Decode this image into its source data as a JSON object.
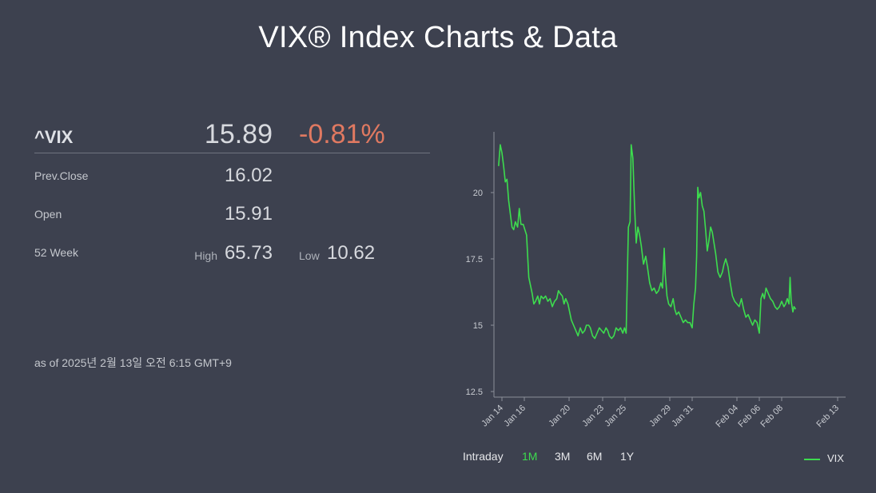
{
  "page": {
    "title": "VIX® Index Charts & Data"
  },
  "quote": {
    "symbol": "^VIX",
    "last": "15.89",
    "change_pct": "-0.81%",
    "prev_close_label": "Prev.Close",
    "prev_close": "16.02",
    "open_label": "Open",
    "open": "15.91",
    "week52_label": "52 Week",
    "high_label": "High",
    "high": "65.73",
    "low_label": "Low",
    "low": "10.62",
    "as_of": "as of 2025년 2월 13일 오전 6:15 GMT+9"
  },
  "ranges": [
    {
      "label": "Intraday",
      "active": false
    },
    {
      "label": "1M",
      "active": true
    },
    {
      "label": "3M",
      "active": false
    },
    {
      "label": "6M",
      "active": false
    },
    {
      "label": "1Y",
      "active": false
    }
  ],
  "colors": {
    "background": "#3d414f",
    "series": "#3ddc4e",
    "negative": "#e07961",
    "axis": "#8a8e98"
  },
  "chart_data": {
    "type": "line",
    "title": "",
    "xlabel": "",
    "ylabel": "",
    "xlim": [
      0,
      30
    ],
    "ylim": [
      12.3,
      22.3
    ],
    "y_ticks": [
      12.5,
      15,
      17.5,
      20
    ],
    "y_tick_labels": [
      "12.5",
      "15",
      "17.5",
      "20"
    ],
    "x_ticks": [
      {
        "x": 0,
        "label": "Jan 14"
      },
      {
        "x": 2,
        "label": "Jan 16"
      },
      {
        "x": 6,
        "label": "Jan 20"
      },
      {
        "x": 9,
        "label": "Jan 23"
      },
      {
        "x": 11,
        "label": "Jan 25"
      },
      {
        "x": 15,
        "label": "Jan 29"
      },
      {
        "x": 17,
        "label": "Jan 31"
      },
      {
        "x": 21,
        "label": "Feb 04"
      },
      {
        "x": 23,
        "label": "Feb 06"
      },
      {
        "x": 25,
        "label": "Feb 08"
      },
      {
        "x": 30,
        "label": "Feb 13"
      }
    ],
    "grid": false,
    "legend": "bottom-right",
    "series": [
      {
        "name": "VIX",
        "color": "#3ddc4e",
        "points": [
          [
            -0.3,
            21.0
          ],
          [
            -0.15,
            21.8
          ],
          [
            0.0,
            21.5
          ],
          [
            0.15,
            21.0
          ],
          [
            0.3,
            20.4
          ],
          [
            0.45,
            20.5
          ],
          [
            0.6,
            19.7
          ],
          [
            0.75,
            19.2
          ],
          [
            0.9,
            18.7
          ],
          [
            1.05,
            18.6
          ],
          [
            1.2,
            18.9
          ],
          [
            1.4,
            18.7
          ],
          [
            1.55,
            19.4
          ],
          [
            1.7,
            18.8
          ],
          [
            1.9,
            18.8
          ],
          [
            2.05,
            18.6
          ],
          [
            2.2,
            18.4
          ],
          [
            2.4,
            16.8
          ],
          [
            2.55,
            16.5
          ],
          [
            2.7,
            16.2
          ],
          [
            2.85,
            15.8
          ],
          [
            3.0,
            15.9
          ],
          [
            3.2,
            16.1
          ],
          [
            3.35,
            15.8
          ],
          [
            3.5,
            16.1
          ],
          [
            3.7,
            16.0
          ],
          [
            3.9,
            16.1
          ],
          [
            4.1,
            15.9
          ],
          [
            4.3,
            16.0
          ],
          [
            4.5,
            15.7
          ],
          [
            4.7,
            15.9
          ],
          [
            4.9,
            16.0
          ],
          [
            5.05,
            16.3
          ],
          [
            5.2,
            16.2
          ],
          [
            5.4,
            16.1
          ],
          [
            5.55,
            15.8
          ],
          [
            5.7,
            16.0
          ],
          [
            5.9,
            15.8
          ],
          [
            6.05,
            15.5
          ],
          [
            6.2,
            15.2
          ],
          [
            6.4,
            15.0
          ],
          [
            6.6,
            14.8
          ],
          [
            6.8,
            14.6
          ],
          [
            7.0,
            14.9
          ],
          [
            7.2,
            14.7
          ],
          [
            7.4,
            14.8
          ],
          [
            7.55,
            15.0
          ],
          [
            7.75,
            15.0
          ],
          [
            7.9,
            14.9
          ],
          [
            8.1,
            14.6
          ],
          [
            8.3,
            14.5
          ],
          [
            8.5,
            14.7
          ],
          [
            8.7,
            14.9
          ],
          [
            8.9,
            14.8
          ],
          [
            9.1,
            14.7
          ],
          [
            9.3,
            14.9
          ],
          [
            9.45,
            14.8
          ],
          [
            9.6,
            14.6
          ],
          [
            9.8,
            14.5
          ],
          [
            10.0,
            14.6
          ],
          [
            10.2,
            14.9
          ],
          [
            10.4,
            14.8
          ],
          [
            10.6,
            14.9
          ],
          [
            10.8,
            14.7
          ],
          [
            10.95,
            14.9
          ],
          [
            11.1,
            14.7
          ],
          [
            11.3,
            18.7
          ],
          [
            11.45,
            18.9
          ],
          [
            11.55,
            21.8
          ],
          [
            11.7,
            21.3
          ],
          [
            11.85,
            19.5
          ],
          [
            12.0,
            18.1
          ],
          [
            12.15,
            18.7
          ],
          [
            12.3,
            18.4
          ],
          [
            12.45,
            18.0
          ],
          [
            12.65,
            17.3
          ],
          [
            12.85,
            17.6
          ],
          [
            13.0,
            17.2
          ],
          [
            13.2,
            16.6
          ],
          [
            13.4,
            16.3
          ],
          [
            13.6,
            16.4
          ],
          [
            13.8,
            16.2
          ],
          [
            14.0,
            16.3
          ],
          [
            14.2,
            16.6
          ],
          [
            14.35,
            16.4
          ],
          [
            14.5,
            17.9
          ],
          [
            14.6,
            16.9
          ],
          [
            14.75,
            16.1
          ],
          [
            14.9,
            15.8
          ],
          [
            15.1,
            15.7
          ],
          [
            15.3,
            16.0
          ],
          [
            15.45,
            15.6
          ],
          [
            15.6,
            15.4
          ],
          [
            15.8,
            15.5
          ],
          [
            16.0,
            15.3
          ],
          [
            16.2,
            15.1
          ],
          [
            16.4,
            15.2
          ],
          [
            16.6,
            15.1
          ],
          [
            16.8,
            15.1
          ],
          [
            17.0,
            14.9
          ],
          [
            17.15,
            15.8
          ],
          [
            17.3,
            16.4
          ],
          [
            17.4,
            17.6
          ],
          [
            17.5,
            20.2
          ],
          [
            17.6,
            19.8
          ],
          [
            17.75,
            20.0
          ],
          [
            17.9,
            19.5
          ],
          [
            18.05,
            19.3
          ],
          [
            18.2,
            18.6
          ],
          [
            18.35,
            17.8
          ],
          [
            18.5,
            18.2
          ],
          [
            18.65,
            18.7
          ],
          [
            18.8,
            18.5
          ],
          [
            18.95,
            18.1
          ],
          [
            19.1,
            17.7
          ],
          [
            19.3,
            17.0
          ],
          [
            19.5,
            16.8
          ],
          [
            19.7,
            17.0
          ],
          [
            19.85,
            17.3
          ],
          [
            20.0,
            17.5
          ],
          [
            20.2,
            17.2
          ],
          [
            20.4,
            16.6
          ],
          [
            20.6,
            16.1
          ],
          [
            20.8,
            15.9
          ],
          [
            21.0,
            15.8
          ],
          [
            21.2,
            15.7
          ],
          [
            21.4,
            16.0
          ],
          [
            21.6,
            15.6
          ],
          [
            21.8,
            15.3
          ],
          [
            22.0,
            15.4
          ],
          [
            22.2,
            15.2
          ],
          [
            22.4,
            15.0
          ],
          [
            22.6,
            15.2
          ],
          [
            22.8,
            15.1
          ],
          [
            23.0,
            14.7
          ],
          [
            23.15,
            16.0
          ],
          [
            23.3,
            16.2
          ],
          [
            23.45,
            16.0
          ],
          [
            23.6,
            16.4
          ],
          [
            23.8,
            16.2
          ],
          [
            24.0,
            16.0
          ],
          [
            24.2,
            15.9
          ],
          [
            24.4,
            15.7
          ],
          [
            24.6,
            15.6
          ],
          [
            24.8,
            15.7
          ],
          [
            25.0,
            15.9
          ],
          [
            25.2,
            15.7
          ],
          [
            25.35,
            15.8
          ],
          [
            25.5,
            16.0
          ],
          [
            25.65,
            15.8
          ],
          [
            25.75,
            16.8
          ],
          [
            25.85,
            15.9
          ],
          [
            26.0,
            15.5
          ],
          [
            26.1,
            15.7
          ],
          [
            26.25,
            15.6
          ]
        ]
      }
    ]
  }
}
